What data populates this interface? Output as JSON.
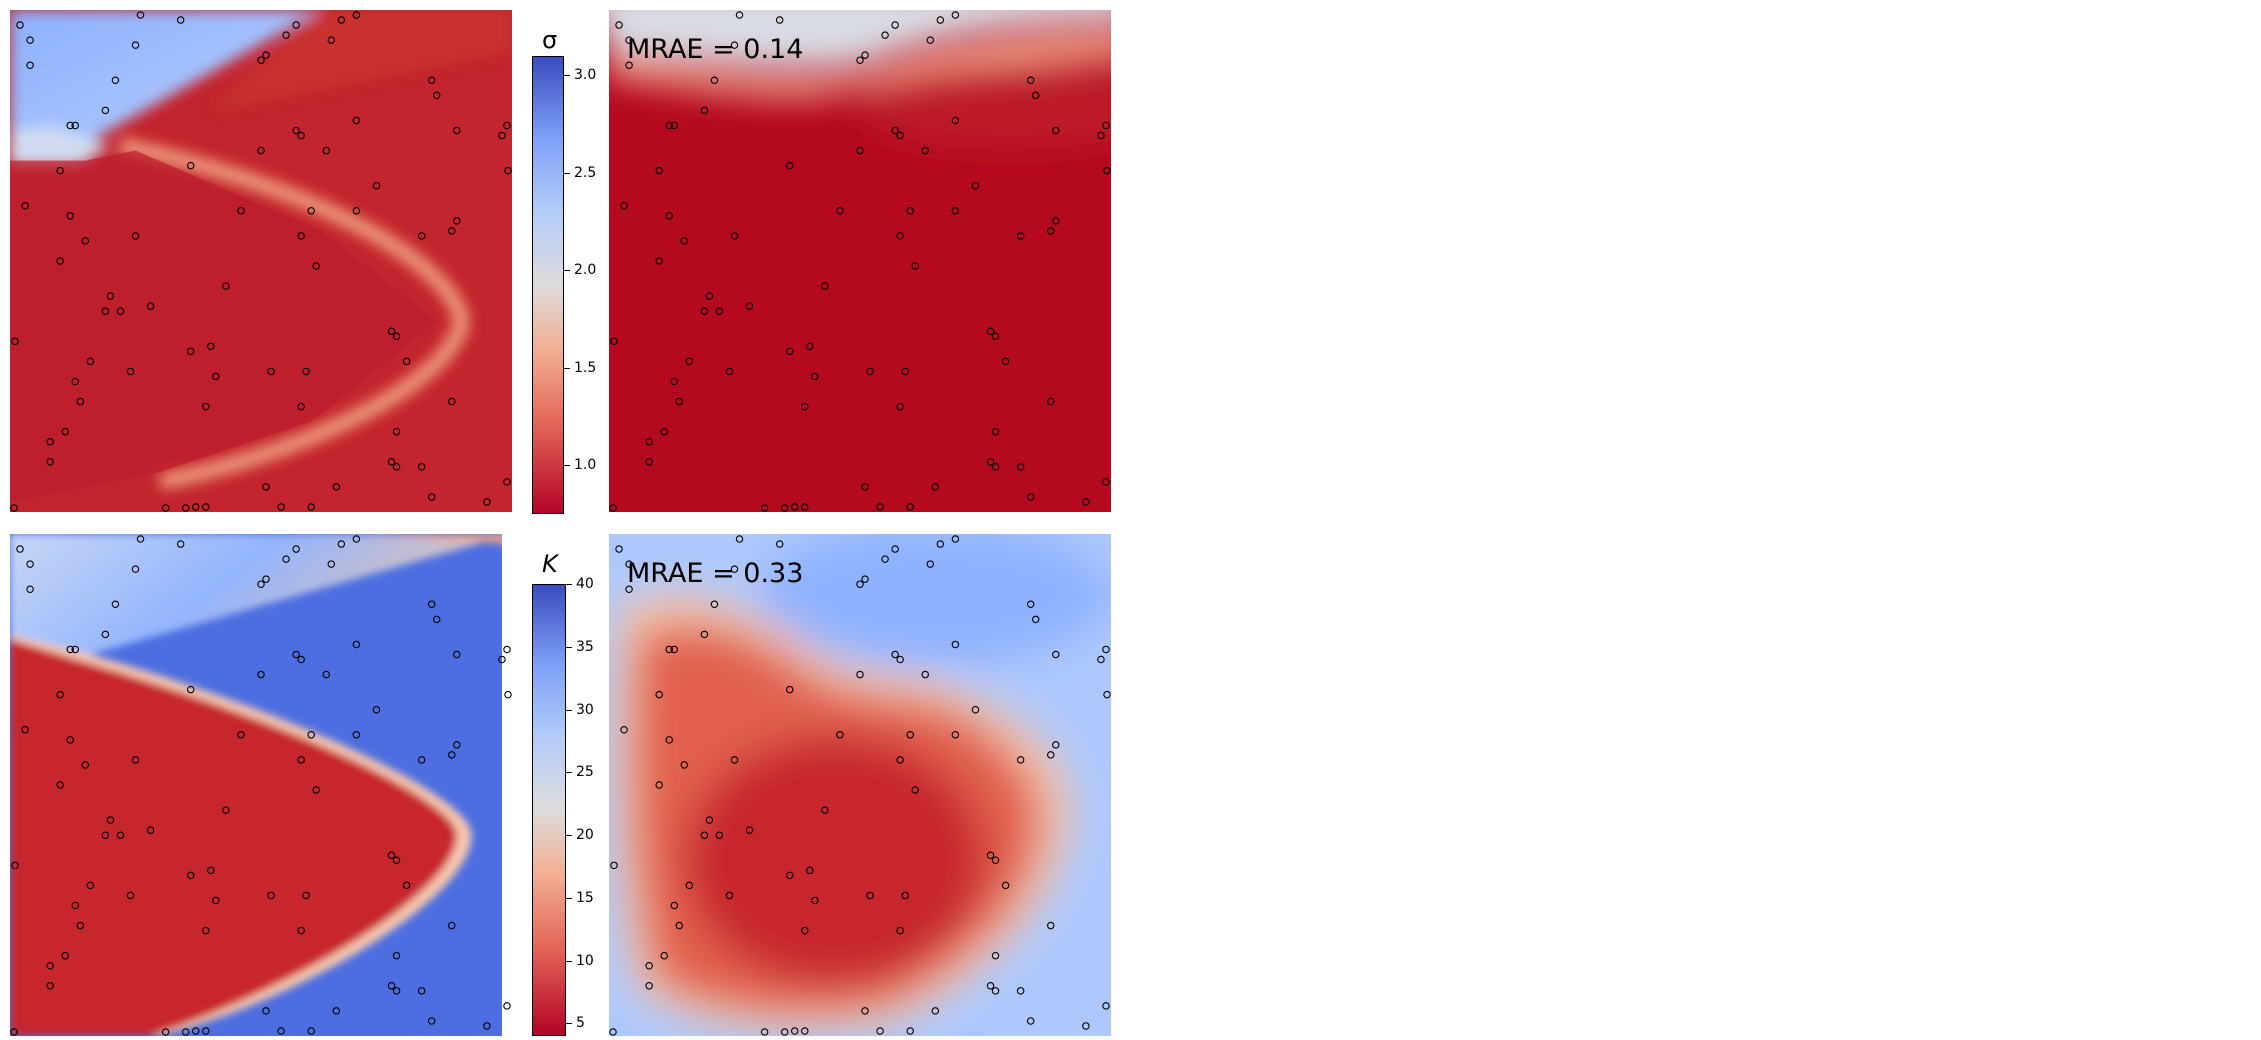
{
  "chart_data": [
    {
      "type": "heatmap",
      "field": "sigma",
      "panel": "reference",
      "colormap": "coolwarm_r",
      "clim": [
        0.75,
        3.1
      ],
      "sensor_points": [
        [
          0.02,
          0.03
        ],
        [
          0.26,
          0.01
        ],
        [
          0.34,
          0.02
        ],
        [
          0.57,
          0.03
        ],
        [
          0.66,
          0.02
        ],
        [
          0.69,
          0.01
        ],
        [
          0.04,
          0.06
        ],
        [
          0.25,
          0.07
        ],
        [
          0.55,
          0.05
        ],
        [
          0.64,
          0.06
        ],
        [
          0.51,
          0.09
        ],
        [
          0.04,
          0.11
        ],
        [
          0.5,
          0.1
        ],
        [
          0.21,
          0.14
        ],
        [
          0.84,
          0.14
        ],
        [
          0.85,
          0.17
        ],
        [
          0.19,
          0.2
        ],
        [
          0.12,
          0.23
        ],
        [
          0.13,
          0.23
        ],
        [
          0.69,
          0.22
        ],
        [
          0.57,
          0.24
        ],
        [
          0.58,
          0.25
        ],
        [
          0.89,
          0.24
        ],
        [
          0.99,
          0.23
        ],
        [
          0.98,
          0.25
        ],
        [
          0.5,
          0.28
        ],
        [
          0.1,
          0.32
        ],
        [
          0.36,
          0.31
        ],
        [
          0.63,
          0.28
        ],
        [
          1.0,
          0.32
        ],
        [
          0.73,
          0.35
        ],
        [
          0.03,
          0.39
        ],
        [
          0.46,
          0.4
        ],
        [
          0.6,
          0.4
        ],
        [
          0.89,
          0.42
        ],
        [
          0.12,
          0.41
        ],
        [
          0.88,
          0.44
        ],
        [
          0.69,
          0.4
        ],
        [
          0.25,
          0.45
        ],
        [
          0.15,
          0.46
        ],
        [
          0.58,
          0.45
        ],
        [
          0.82,
          0.45
        ],
        [
          0.1,
          0.5
        ],
        [
          0.61,
          0.51
        ],
        [
          0.43,
          0.55
        ],
        [
          0.2,
          0.57
        ],
        [
          0.19,
          0.6
        ],
        [
          0.28,
          0.59
        ],
        [
          0.22,
          0.6
        ],
        [
          0.76,
          0.64
        ],
        [
          0.77,
          0.65
        ],
        [
          0.4,
          0.67
        ],
        [
          0.36,
          0.68
        ],
        [
          0.01,
          0.66
        ],
        [
          0.16,
          0.7
        ],
        [
          0.24,
          0.72
        ],
        [
          0.79,
          0.7
        ],
        [
          0.13,
          0.74
        ],
        [
          0.41,
          0.73
        ],
        [
          0.52,
          0.72
        ],
        [
          0.59,
          0.72
        ],
        [
          0.14,
          0.78
        ],
        [
          0.39,
          0.79
        ],
        [
          0.58,
          0.79
        ],
        [
          0.88,
          0.78
        ],
        [
          0.11,
          0.84
        ],
        [
          0.77,
          0.84
        ],
        [
          0.08,
          0.86
        ],
        [
          0.76,
          0.9
        ],
        [
          0.77,
          0.91
        ],
        [
          0.08,
          0.9
        ],
        [
          0.82,
          0.91
        ],
        [
          0.65,
          0.95
        ],
        [
          0.84,
          0.97
        ],
        [
          0.99,
          0.94
        ],
        [
          0.51,
          0.95
        ],
        [
          0.54,
          0.99
        ],
        [
          0.35,
          1.0
        ],
        [
          0.37,
          0.99
        ],
        [
          0.39,
          0.99
        ],
        [
          0.31,
          1.0
        ],
        [
          0.6,
          0.99
        ],
        [
          0.95,
          0.98
        ],
        [
          0.0,
          1.0
        ]
      ]
    },
    {
      "type": "heatmap",
      "field": "sigma",
      "panel": "prediction",
      "colormap": "coolwarm_r",
      "clim": [
        0.75,
        3.1
      ],
      "annotation": "MRAE = 0.14",
      "mrae": 0.14,
      "sensor_points": [
        [
          0.02,
          0.03
        ],
        [
          0.26,
          0.01
        ],
        [
          0.34,
          0.02
        ],
        [
          0.57,
          0.03
        ],
        [
          0.66,
          0.02
        ],
        [
          0.69,
          0.01
        ],
        [
          0.04,
          0.06
        ],
        [
          0.25,
          0.07
        ],
        [
          0.55,
          0.05
        ],
        [
          0.64,
          0.06
        ],
        [
          0.51,
          0.09
        ],
        [
          0.04,
          0.11
        ],
        [
          0.5,
          0.1
        ],
        [
          0.21,
          0.14
        ],
        [
          0.84,
          0.14
        ],
        [
          0.85,
          0.17
        ],
        [
          0.19,
          0.2
        ],
        [
          0.12,
          0.23
        ],
        [
          0.13,
          0.23
        ],
        [
          0.69,
          0.22
        ],
        [
          0.57,
          0.24
        ],
        [
          0.58,
          0.25
        ],
        [
          0.89,
          0.24
        ],
        [
          0.99,
          0.23
        ],
        [
          0.98,
          0.25
        ],
        [
          0.5,
          0.28
        ],
        [
          0.1,
          0.32
        ],
        [
          0.36,
          0.31
        ],
        [
          0.63,
          0.28
        ],
        [
          1.0,
          0.32
        ],
        [
          0.73,
          0.35
        ],
        [
          0.03,
          0.39
        ],
        [
          0.46,
          0.4
        ],
        [
          0.6,
          0.4
        ],
        [
          0.89,
          0.42
        ],
        [
          0.12,
          0.41
        ],
        [
          0.88,
          0.44
        ],
        [
          0.69,
          0.4
        ],
        [
          0.25,
          0.45
        ],
        [
          0.15,
          0.46
        ],
        [
          0.58,
          0.45
        ],
        [
          0.82,
          0.45
        ],
        [
          0.1,
          0.5
        ],
        [
          0.61,
          0.51
        ],
        [
          0.43,
          0.55
        ],
        [
          0.2,
          0.57
        ],
        [
          0.19,
          0.6
        ],
        [
          0.28,
          0.59
        ],
        [
          0.22,
          0.6
        ],
        [
          0.76,
          0.64
        ],
        [
          0.77,
          0.65
        ],
        [
          0.4,
          0.67
        ],
        [
          0.36,
          0.68
        ],
        [
          0.01,
          0.66
        ],
        [
          0.16,
          0.7
        ],
        [
          0.24,
          0.72
        ],
        [
          0.79,
          0.7
        ],
        [
          0.13,
          0.74
        ],
        [
          0.41,
          0.73
        ],
        [
          0.52,
          0.72
        ],
        [
          0.59,
          0.72
        ],
        [
          0.14,
          0.78
        ],
        [
          0.39,
          0.79
        ],
        [
          0.58,
          0.79
        ],
        [
          0.88,
          0.78
        ],
        [
          0.11,
          0.84
        ],
        [
          0.77,
          0.84
        ],
        [
          0.08,
          0.86
        ],
        [
          0.76,
          0.9
        ],
        [
          0.77,
          0.91
        ],
        [
          0.08,
          0.9
        ],
        [
          0.82,
          0.91
        ],
        [
          0.65,
          0.95
        ],
        [
          0.84,
          0.97
        ],
        [
          0.99,
          0.94
        ],
        [
          0.51,
          0.95
        ],
        [
          0.54,
          0.99
        ],
        [
          0.35,
          1.0
        ],
        [
          0.37,
          0.99
        ],
        [
          0.39,
          0.99
        ],
        [
          0.31,
          1.0
        ],
        [
          0.6,
          0.99
        ],
        [
          0.95,
          0.98
        ],
        [
          0.0,
          1.0
        ]
      ]
    },
    {
      "type": "heatmap",
      "field": "K",
      "panel": "reference",
      "colormap": "coolwarm_r",
      "clim": [
        4,
        40
      ],
      "sensor_points": [
        [
          0.02,
          0.03
        ],
        [
          0.26,
          0.01
        ],
        [
          0.34,
          0.02
        ],
        [
          0.57,
          0.03
        ],
        [
          0.66,
          0.02
        ],
        [
          0.69,
          0.01
        ],
        [
          0.04,
          0.06
        ],
        [
          0.25,
          0.07
        ],
        [
          0.55,
          0.05
        ],
        [
          0.64,
          0.06
        ],
        [
          0.51,
          0.09
        ],
        [
          0.04,
          0.11
        ],
        [
          0.5,
          0.1
        ],
        [
          0.21,
          0.14
        ],
        [
          0.84,
          0.14
        ],
        [
          0.85,
          0.17
        ],
        [
          0.19,
          0.2
        ],
        [
          0.12,
          0.23
        ],
        [
          0.13,
          0.23
        ],
        [
          0.69,
          0.22
        ],
        [
          0.57,
          0.24
        ],
        [
          0.58,
          0.25
        ],
        [
          0.89,
          0.24
        ],
        [
          0.99,
          0.23
        ],
        [
          0.98,
          0.25
        ],
        [
          0.5,
          0.28
        ],
        [
          0.1,
          0.32
        ],
        [
          0.36,
          0.31
        ],
        [
          0.63,
          0.28
        ],
        [
          1.0,
          0.32
        ],
        [
          0.73,
          0.35
        ],
        [
          0.03,
          0.39
        ],
        [
          0.46,
          0.4
        ],
        [
          0.6,
          0.4
        ],
        [
          0.89,
          0.42
        ],
        [
          0.12,
          0.41
        ],
        [
          0.88,
          0.44
        ],
        [
          0.69,
          0.4
        ],
        [
          0.25,
          0.45
        ],
        [
          0.15,
          0.46
        ],
        [
          0.58,
          0.45
        ],
        [
          0.82,
          0.45
        ],
        [
          0.1,
          0.5
        ],
        [
          0.61,
          0.51
        ],
        [
          0.43,
          0.55
        ],
        [
          0.2,
          0.57
        ],
        [
          0.19,
          0.6
        ],
        [
          0.28,
          0.59
        ],
        [
          0.22,
          0.6
        ],
        [
          0.76,
          0.64
        ],
        [
          0.77,
          0.65
        ],
        [
          0.4,
          0.67
        ],
        [
          0.36,
          0.68
        ],
        [
          0.01,
          0.66
        ],
        [
          0.16,
          0.7
        ],
        [
          0.24,
          0.72
        ],
        [
          0.79,
          0.7
        ],
        [
          0.13,
          0.74
        ],
        [
          0.41,
          0.73
        ],
        [
          0.52,
          0.72
        ],
        [
          0.59,
          0.72
        ],
        [
          0.14,
          0.78
        ],
        [
          0.39,
          0.79
        ],
        [
          0.58,
          0.79
        ],
        [
          0.88,
          0.78
        ],
        [
          0.11,
          0.84
        ],
        [
          0.77,
          0.84
        ],
        [
          0.08,
          0.86
        ],
        [
          0.76,
          0.9
        ],
        [
          0.77,
          0.91
        ],
        [
          0.08,
          0.9
        ],
        [
          0.82,
          0.91
        ],
        [
          0.65,
          0.95
        ],
        [
          0.84,
          0.97
        ],
        [
          0.99,
          0.94
        ],
        [
          0.51,
          0.95
        ],
        [
          0.54,
          0.99
        ],
        [
          0.35,
          1.0
        ],
        [
          0.37,
          0.99
        ],
        [
          0.39,
          0.99
        ],
        [
          0.31,
          1.0
        ],
        [
          0.6,
          0.99
        ],
        [
          0.95,
          0.98
        ],
        [
          0.0,
          1.0
        ]
      ]
    },
    {
      "type": "heatmap",
      "field": "K",
      "panel": "prediction",
      "colormap": "coolwarm_r",
      "clim": [
        4,
        40
      ],
      "annotation": "MRAE = 0.33",
      "mrae": 0.33,
      "sensor_points": [
        [
          0.02,
          0.03
        ],
        [
          0.26,
          0.01
        ],
        [
          0.34,
          0.02
        ],
        [
          0.57,
          0.03
        ],
        [
          0.66,
          0.02
        ],
        [
          0.69,
          0.01
        ],
        [
          0.04,
          0.06
        ],
        [
          0.25,
          0.07
        ],
        [
          0.55,
          0.05
        ],
        [
          0.64,
          0.06
        ],
        [
          0.51,
          0.09
        ],
        [
          0.04,
          0.11
        ],
        [
          0.5,
          0.1
        ],
        [
          0.21,
          0.14
        ],
        [
          0.84,
          0.14
        ],
        [
          0.85,
          0.17
        ],
        [
          0.19,
          0.2
        ],
        [
          0.12,
          0.23
        ],
        [
          0.13,
          0.23
        ],
        [
          0.69,
          0.22
        ],
        [
          0.57,
          0.24
        ],
        [
          0.58,
          0.25
        ],
        [
          0.89,
          0.24
        ],
        [
          0.99,
          0.23
        ],
        [
          0.98,
          0.25
        ],
        [
          0.5,
          0.28
        ],
        [
          0.1,
          0.32
        ],
        [
          0.36,
          0.31
        ],
        [
          0.63,
          0.28
        ],
        [
          1.0,
          0.32
        ],
        [
          0.73,
          0.35
        ],
        [
          0.03,
          0.39
        ],
        [
          0.46,
          0.4
        ],
        [
          0.6,
          0.4
        ],
        [
          0.89,
          0.42
        ],
        [
          0.12,
          0.41
        ],
        [
          0.88,
          0.44
        ],
        [
          0.69,
          0.4
        ],
        [
          0.25,
          0.45
        ],
        [
          0.15,
          0.46
        ],
        [
          0.58,
          0.45
        ],
        [
          0.82,
          0.45
        ],
        [
          0.1,
          0.5
        ],
        [
          0.61,
          0.51
        ],
        [
          0.43,
          0.55
        ],
        [
          0.2,
          0.57
        ],
        [
          0.19,
          0.6
        ],
        [
          0.28,
          0.59
        ],
        [
          0.22,
          0.6
        ],
        [
          0.76,
          0.64
        ],
        [
          0.77,
          0.65
        ],
        [
          0.4,
          0.67
        ],
        [
          0.36,
          0.68
        ],
        [
          0.01,
          0.66
        ],
        [
          0.16,
          0.7
        ],
        [
          0.24,
          0.72
        ],
        [
          0.79,
          0.7
        ],
        [
          0.13,
          0.74
        ],
        [
          0.41,
          0.73
        ],
        [
          0.52,
          0.72
        ],
        [
          0.59,
          0.72
        ],
        [
          0.14,
          0.78
        ],
        [
          0.39,
          0.79
        ],
        [
          0.58,
          0.79
        ],
        [
          0.88,
          0.78
        ],
        [
          0.11,
          0.84
        ],
        [
          0.77,
          0.84
        ],
        [
          0.08,
          0.86
        ],
        [
          0.76,
          0.9
        ],
        [
          0.77,
          0.91
        ],
        [
          0.08,
          0.9
        ],
        [
          0.82,
          0.91
        ],
        [
          0.65,
          0.95
        ],
        [
          0.84,
          0.97
        ],
        [
          0.99,
          0.94
        ],
        [
          0.51,
          0.95
        ],
        [
          0.54,
          0.99
        ],
        [
          0.35,
          1.0
        ],
        [
          0.37,
          0.99
        ],
        [
          0.39,
          0.99
        ],
        [
          0.31,
          1.0
        ],
        [
          0.6,
          0.99
        ],
        [
          0.95,
          0.98
        ],
        [
          0.0,
          1.0
        ]
      ]
    }
  ],
  "colorbars": [
    {
      "symbol": "σ",
      "range": [
        0.75,
        3.1
      ],
      "ticks": [
        "1.0",
        "1.5",
        "2.0",
        "2.5",
        "3.0"
      ],
      "tick_values": [
        1.0,
        1.5,
        2.0,
        2.5,
        3.0
      ]
    },
    {
      "symbol": "K",
      "range": [
        4,
        40
      ],
      "ticks": [
        "5",
        "10",
        "15",
        "20",
        "25",
        "30",
        "35",
        "40"
      ],
      "tick_values": [
        5,
        10,
        15,
        20,
        25,
        30,
        35,
        40
      ]
    }
  ],
  "colors": {
    "low": "#b40426",
    "mid": "#dddcdc",
    "high": "#3b4cc0"
  }
}
